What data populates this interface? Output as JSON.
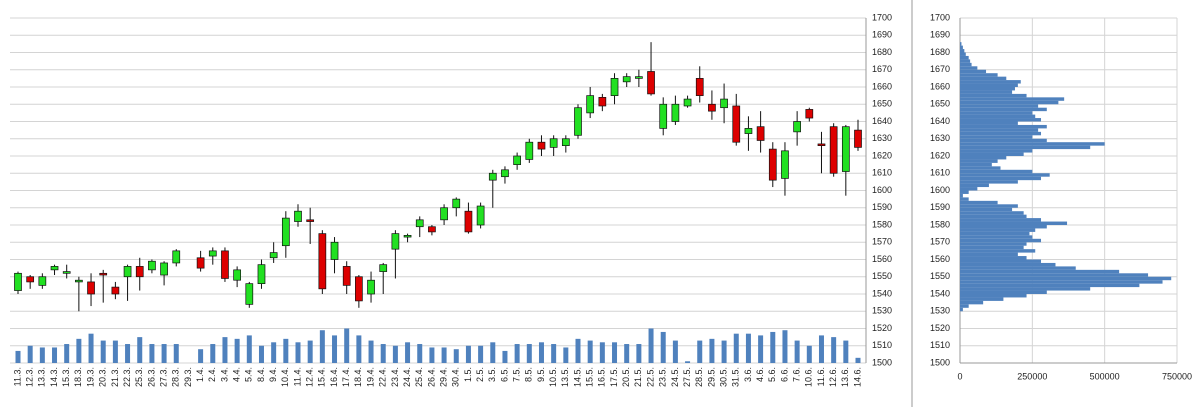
{
  "chart_data": [
    {
      "type": "candlestick",
      "categories": [
        "11.3.",
        "12.3.",
        "13.3.",
        "14.3.",
        "15.3.",
        "18.3.",
        "19.3.",
        "20.3.",
        "21.3.",
        "22.3.",
        "25.3.",
        "26.3.",
        "27.3.",
        "28.3.",
        "29.3.",
        "1.4.",
        "2.4.",
        "3.4.",
        "4.4.",
        "5.4.",
        "8.4.",
        "9.4.",
        "10.4.",
        "11.4.",
        "12.4.",
        "15.4.",
        "16.4.",
        "17.4.",
        "18.4.",
        "19.4.",
        "22.4.",
        "23.4.",
        "24.4.",
        "25.4.",
        "26.4.",
        "29.4.",
        "30.4.",
        "1.5.",
        "2.5.",
        "3.5.",
        "6.5.",
        "7.5.",
        "8.5.",
        "9.5.",
        "10.5.",
        "13.5.",
        "14.5.",
        "15.5.",
        "16.5.",
        "17.5.",
        "20.5.",
        "21.5.",
        "22.5.",
        "23.5.",
        "24.5.",
        "27.5.",
        "28.5.",
        "29.5.",
        "30.5.",
        "31.5.",
        "3.6.",
        "4.6.",
        "5.6.",
        "6.6.",
        "7.6.",
        "10.6.",
        "11.6.",
        "12.6.",
        "13.6.",
        "14.6."
      ],
      "open": [
        1542,
        1550,
        1545,
        1554,
        1552,
        1547,
        1547,
        1552,
        1544,
        1550,
        1556,
        1554,
        1551,
        1558,
        null,
        1561,
        1562,
        1565,
        1548,
        1534,
        1546,
        1561,
        1568,
        1582,
        1583,
        1575,
        1560,
        1556,
        1550,
        1540,
        1553,
        1566,
        1573,
        1579,
        1579,
        1583,
        1590,
        1588,
        1580,
        1606,
        1608,
        1615,
        1618,
        1628,
        1625,
        1626,
        1632,
        1645,
        1654,
        1655,
        1663,
        1665,
        1669,
        1636,
        1640,
        1649,
        1665,
        1650,
        1648,
        1649,
        1633,
        1637,
        1624,
        1607,
        1634,
        1647,
        1627,
        1637,
        1611,
        1635
      ],
      "high": [
        1553,
        1551,
        1552,
        1557,
        1557,
        1550,
        1552,
        1554,
        1547,
        1557,
        1561,
        1560,
        1559,
        1566,
        null,
        1565,
        1567,
        1567,
        1556,
        1547,
        1560,
        1570,
        1588,
        1592,
        1590,
        1577,
        1573,
        1559,
        1551,
        1553,
        1558,
        1577,
        1575,
        1585,
        1580,
        1592,
        1596,
        1593,
        1593,
        1612,
        1614,
        1622,
        1630,
        1632,
        1632,
        1632,
        1650,
        1660,
        1656,
        1668,
        1668,
        1670,
        1686,
        1654,
        1655,
        1655,
        1672,
        1658,
        1662,
        1656,
        1643,
        1646,
        1628,
        1628,
        1646,
        1648,
        1634,
        1639,
        1638,
        1641
      ],
      "low": [
        1540,
        1543,
        1543,
        1551,
        1549,
        1530,
        1533,
        1535,
        1537,
        1536,
        1542,
        1552,
        1545,
        1556,
        null,
        1553,
        1557,
        1547,
        1544,
        1532,
        1543,
        1558,
        1561,
        1579,
        1569,
        1540,
        1552,
        1540,
        1532,
        1535,
        1540,
        1549,
        1570,
        1573,
        1574,
        1580,
        1585,
        1575,
        1578,
        1590,
        1604,
        1612,
        1616,
        1620,
        1620,
        1622,
        1630,
        1642,
        1646,
        1650,
        1660,
        1660,
        1655,
        1632,
        1638,
        1648,
        1651,
        1641,
        1639,
        1626,
        1623,
        1622,
        1602,
        1597,
        1626,
        1640,
        1610,
        1608,
        1597,
        1623
      ],
      "close": [
        1552,
        1547,
        1550,
        1556,
        1553,
        1548,
        1540,
        1551,
        1540,
        1556,
        1550,
        1559,
        1558,
        1565,
        null,
        1555,
        1565,
        1549,
        1554,
        1546,
        1557,
        1564,
        1584,
        1588,
        1582,
        1543,
        1570,
        1545,
        1536,
        1548,
        1557,
        1575,
        1574,
        1583,
        1576,
        1590,
        1595,
        1576,
        1591,
        1610,
        1612,
        1620,
        1628,
        1624,
        1630,
        1630,
        1648,
        1655,
        1649,
        1665,
        1666,
        1666,
        1656,
        1650,
        1650,
        1653,
        1655,
        1646,
        1653,
        1628,
        1636,
        1629,
        1606,
        1623,
        1640,
        1642,
        1626,
        1610,
        1637,
        1625
      ],
      "volume": [
        1507,
        1510,
        1509,
        1509,
        1511,
        1514,
        1517,
        1513,
        1513,
        1511,
        1515,
        1511,
        1511,
        1511,
        null,
        1508,
        1511,
        1515,
        1514,
        1516,
        1510,
        1512,
        1514,
        1512,
        1513,
        1519,
        1516,
        1520,
        1516,
        1513,
        1511,
        1510,
        1512,
        1511,
        1509,
        1509,
        1508,
        1510,
        1510,
        1512,
        1507,
        1511,
        1511,
        1512,
        1511,
        1509,
        1514,
        1513,
        1512,
        1512,
        1511,
        1511,
        1520,
        1518,
        1513,
        1501,
        1513,
        1514,
        1513,
        1517,
        1517,
        1516,
        1518,
        1519,
        1513,
        1510,
        1516,
        1515,
        1513,
        1503
      ],
      "up_color": "#22e022",
      "down_color": "#dd0000",
      "volume_color": "#4f81bd",
      "ylim": [
        1500,
        1700
      ],
      "yticks": [
        1500,
        1510,
        1520,
        1530,
        1540,
        1550,
        1560,
        1570,
        1580,
        1590,
        1600,
        1610,
        1620,
        1630,
        1640,
        1650,
        1660,
        1670,
        1680,
        1690,
        1700
      ],
      "grid": true
    },
    {
      "type": "histogram",
      "orientation": "horizontal",
      "color": "#4f81bd",
      "bins": [
        1530,
        1532,
        1534,
        1536,
        1538,
        1540,
        1542,
        1544,
        1546,
        1548,
        1550,
        1552,
        1554,
        1556,
        1558,
        1560,
        1562,
        1564,
        1566,
        1568,
        1570,
        1572,
        1574,
        1576,
        1578,
        1580,
        1582,
        1584,
        1586,
        1588,
        1590,
        1592,
        1594,
        1596,
        1598,
        1600,
        1602,
        1604,
        1606,
        1608,
        1610,
        1612,
        1614,
        1616,
        1618,
        1620,
        1622,
        1624,
        1626,
        1628,
        1630,
        1632,
        1634,
        1636,
        1638,
        1640,
        1642,
        1644,
        1646,
        1648,
        1650,
        1652,
        1654,
        1656,
        1658,
        1660,
        1662,
        1664,
        1666,
        1668,
        1670,
        1672,
        1674,
        1676,
        1678,
        1680,
        1682,
        1684,
        1686
      ],
      "values": [
        10000,
        30000,
        80000,
        150000,
        230000,
        300000,
        450000,
        620000,
        700000,
        730000,
        650000,
        550000,
        400000,
        330000,
        280000,
        230000,
        200000,
        260000,
        220000,
        230000,
        280000,
        250000,
        240000,
        260000,
        300000,
        370000,
        280000,
        230000,
        220000,
        180000,
        200000,
        130000,
        30000,
        10000,
        30000,
        60000,
        100000,
        200000,
        280000,
        310000,
        250000,
        140000,
        110000,
        130000,
        160000,
        220000,
        250000,
        450000,
        500000,
        300000,
        250000,
        280000,
        270000,
        300000,
        200000,
        280000,
        260000,
        250000,
        300000,
        270000,
        340000,
        360000,
        230000,
        180000,
        190000,
        200000,
        210000,
        160000,
        130000,
        90000,
        60000,
        40000,
        35000,
        30000,
        20000,
        15000,
        10000,
        5000
      ],
      "xlim": [
        0,
        750000
      ],
      "xticks": [
        0,
        250000,
        500000,
        750000
      ],
      "ylim": [
        1500,
        1700
      ],
      "yticks": [
        1500,
        1510,
        1520,
        1530,
        1540,
        1550,
        1560,
        1570,
        1580,
        1590,
        1600,
        1610,
        1620,
        1630,
        1640,
        1650,
        1660,
        1670,
        1680,
        1690,
        1700
      ],
      "grid": true
    }
  ]
}
